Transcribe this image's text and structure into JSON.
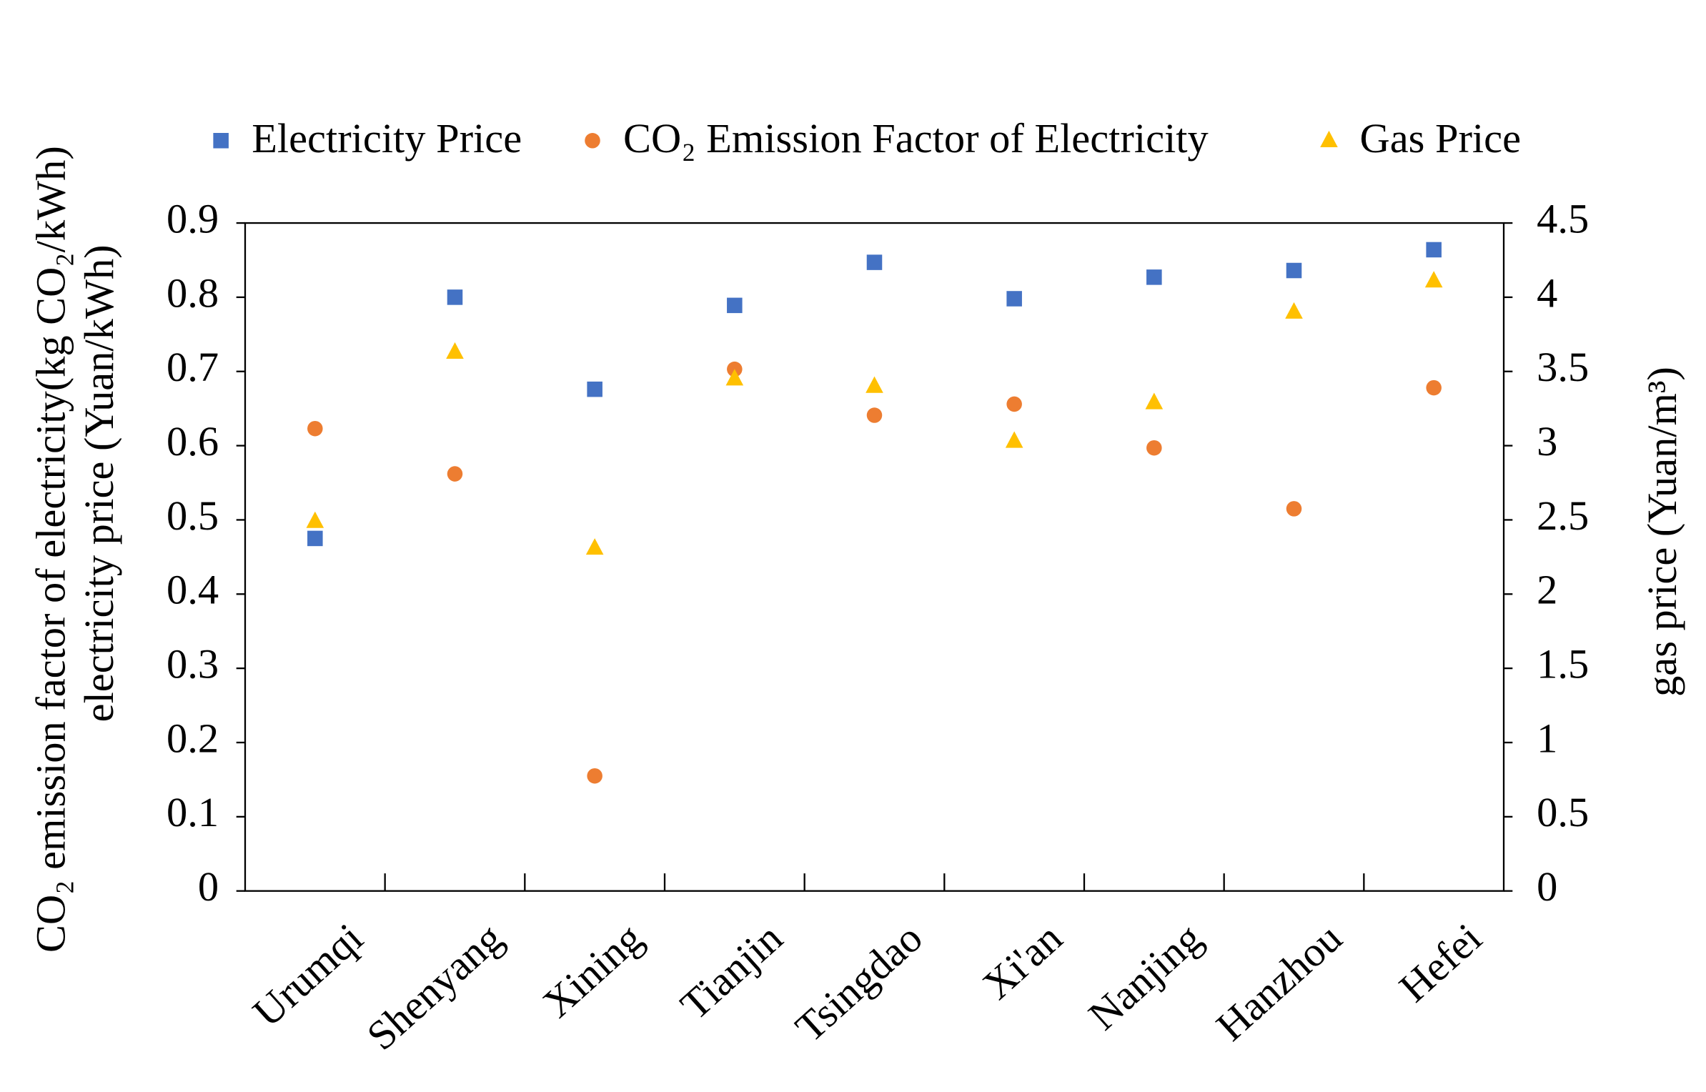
{
  "chart_data": {
    "type": "scatter",
    "y_label_lines": [
      "CO₂  emission factor of electricity(kg CO₂/kWh)",
      "electricity price (Yuan/kWh)"
    ],
    "y2_label": "gas price (Yuan/m³)",
    "categories": [
      "Urumqi",
      "Shenyang",
      "Xining",
      "Tianjin",
      "Tsingdao",
      "Xi'an",
      "Nanjing",
      "Hanzhou",
      "Hefei"
    ],
    "series": [
      {
        "name": "Electricity Price",
        "color": "#4472c4",
        "marker": "square",
        "values": [
          0.475,
          0.8,
          0.676,
          0.789,
          0.847,
          0.798,
          0.827,
          0.836,
          0.864
        ]
      },
      {
        "name": "CO₂ Emission Factor of Electricity",
        "color": "#ed7d31",
        "marker": "circle",
        "values": [
          0.623,
          0.562,
          0.155,
          0.703,
          0.641,
          0.656,
          0.597,
          0.515,
          0.678
        ]
      },
      {
        "name": "Gas Price",
        "color": "#ffc000",
        "marker": "triangle",
        "axis": "y2",
        "values": [
          2.49,
          3.63,
          2.31,
          3.45,
          3.4,
          3.03,
          3.29,
          3.9,
          4.11
        ]
      }
    ],
    "ylim": [
      0,
      0.9
    ],
    "yticks": [
      0,
      0.1,
      0.2,
      0.3,
      0.4,
      0.5,
      0.6,
      0.7,
      0.8,
      0.9
    ],
    "y2lim": [
      0,
      4.5
    ],
    "y2ticks": [
      0,
      0.5,
      1,
      1.5,
      2,
      2.5,
      3,
      3.5,
      4,
      4.5
    ],
    "legend": "top"
  }
}
